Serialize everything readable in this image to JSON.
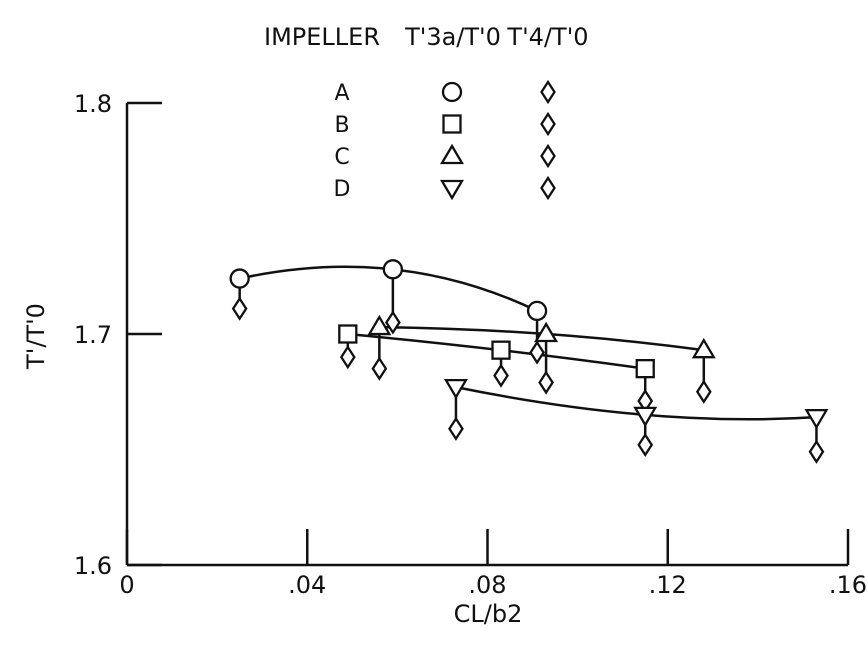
{
  "chart_data": {
    "type": "scatter",
    "title": "",
    "xlabel": "CL/b2",
    "ylabel": "T'/T'0",
    "xlim": [
      0,
      0.16
    ],
    "ylim": [
      1.6,
      1.8
    ],
    "x_ticks": [
      0,
      0.04,
      0.08,
      0.12,
      0.16
    ],
    "x_tick_labels": [
      "0",
      ".04",
      ".08",
      ".12",
      ".16"
    ],
    "y_ticks": [
      1.6,
      1.7,
      1.8
    ],
    "y_tick_labels": [
      "1.6",
      "1.7",
      "1.8"
    ],
    "grid": false,
    "legend": {
      "placement": "top",
      "header": {
        "impeller": "IMPELLER",
        "t3a": "T'3a/T'0",
        "t4": "T'4/T'0"
      },
      "rows": [
        {
          "impeller": "A",
          "t3a_marker": "circle",
          "t4_marker": "diamond"
        },
        {
          "impeller": "B",
          "t3a_marker": "square",
          "t4_marker": "diamond"
        },
        {
          "impeller": "C",
          "t3a_marker": "triangle-up",
          "t4_marker": "diamond"
        },
        {
          "impeller": "D",
          "t3a_marker": "triangle-down",
          "t4_marker": "diamond"
        }
      ]
    },
    "series": [
      {
        "impeller": "A",
        "marker": "circle",
        "t3a": {
          "x": [
            0.025,
            0.059,
            0.091
          ],
          "y": [
            1.724,
            1.728,
            1.71
          ]
        },
        "t4": {
          "x": [
            0.025,
            0.059,
            0.091
          ],
          "y": [
            1.711,
            1.705,
            1.692
          ]
        }
      },
      {
        "impeller": "B",
        "marker": "square",
        "t3a": {
          "x": [
            0.049,
            0.083,
            0.115
          ],
          "y": [
            1.7,
            1.693,
            1.685
          ]
        },
        "t4": {
          "x": [
            0.049,
            0.083,
            0.115
          ],
          "y": [
            1.69,
            1.682,
            1.671
          ]
        }
      },
      {
        "impeller": "C",
        "marker": "triangle-up",
        "t3a": {
          "x": [
            0.056,
            0.093,
            0.128
          ],
          "y": [
            1.703,
            1.7,
            1.693
          ]
        },
        "t4": {
          "x": [
            0.056,
            0.093,
            0.128
          ],
          "y": [
            1.685,
            1.679,
            1.675
          ]
        }
      },
      {
        "impeller": "D",
        "marker": "triangle-down",
        "t3a": {
          "x": [
            0.073,
            0.115,
            0.153
          ],
          "y": [
            1.677,
            1.665,
            1.664
          ]
        },
        "t4": {
          "x": [
            0.073,
            0.115,
            0.153
          ],
          "y": [
            1.659,
            1.652,
            1.649
          ]
        }
      }
    ]
  }
}
